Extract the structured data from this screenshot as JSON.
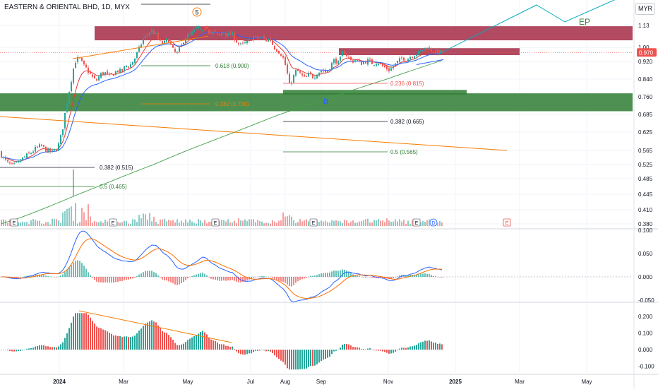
{
  "header": {
    "title": "EASTERN & ORIENTAL BHD, 1D, MYX",
    "currency": "MYR"
  },
  "colors": {
    "up": "#26a69a",
    "down": "#ef5350",
    "grid": "#f0f3fa",
    "text": "#131722",
    "ema_fast": "#e53935",
    "ema_slow": "#2962ff",
    "ma_long": "#43a047",
    "trend": "#f57c00",
    "zone_red": "#a52a45",
    "zone_green": "#2e7d32",
    "projection": "#00acc1",
    "macd": "#2962ff",
    "signal": "#ff6d00"
  },
  "chart_data": [
    {
      "type": "candlestick",
      "title": "EASTERN & ORIENTAL BHD, 1D, MYX",
      "ylabel": "MYR",
      "y_ticks": [
        "1.13",
        "1.00",
        "0.920",
        "0.840",
        "0.760",
        "0.685",
        "0.625",
        "0.565",
        "0.525",
        "0.485",
        "0.445",
        "0.410",
        "0.380"
      ],
      "last_price": "0.970",
      "x_ticks": [
        "2024",
        "Mar",
        "May",
        "Jul",
        "Aug",
        "Sep",
        "Nov",
        "2025",
        "Mar",
        "May"
      ],
      "ylim": [
        0.37,
        1.2
      ],
      "fib_labels": [
        {
          "text": "0.618 (0.900)",
          "value": 0.9
        },
        {
          "text": "0.382 (0.730)",
          "value": 0.73
        },
        {
          "text": "0.236 (0.815)",
          "value": 0.815
        },
        {
          "text": "0.382 (0.665)",
          "value": 0.665
        },
        {
          "text": "0.5 (0.565)",
          "value": 0.565
        },
        {
          "text": "0.382 (0.515)",
          "value": 0.515
        },
        {
          "text": "0.5 (0.465)",
          "value": 0.465
        }
      ],
      "annotations": {
        "wave_label": "5",
        "ep_label": "EP",
        "event_marker": "E",
        "dividend_marker": "D"
      }
    },
    {
      "type": "line",
      "name": "MACD",
      "y_ticks": [
        "0.100",
        "0.050",
        "0.000",
        "-0.050"
      ],
      "ylim": [
        -0.065,
        0.105
      ]
    },
    {
      "type": "bar",
      "name": "Histogram",
      "y_ticks": [
        "0.200",
        "0.100",
        "0.000",
        "-0.100"
      ],
      "ylim": [
        -0.13,
        0.235
      ]
    }
  ]
}
